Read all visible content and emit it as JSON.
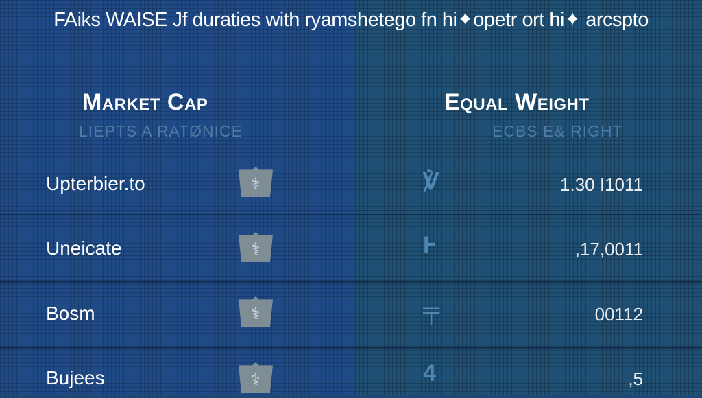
{
  "title": "FAiks WAISE Jf duraties with ryamshetego fn hi✦opetr ort hi✦ arcspto",
  "columns": [
    {
      "heading": "Market Cap",
      "subheading": "LIEPTS A RATØNICE"
    },
    {
      "heading": "Equal Weight",
      "subheading": "ECBS E& RIGHT"
    }
  ],
  "rows": [
    {
      "label": "Upterbier.to",
      "value": "1.30 I1011",
      "left_icon": "shield-emblem-icon",
      "right_icon": "bat-glyph-icon"
    },
    {
      "label": "Uneicate",
      "value": ",17,0011",
      "left_icon": "shield-emblem-icon",
      "right_icon": "glyph-icon"
    },
    {
      "label": "Bosm",
      "value": "00112",
      "left_icon": "shield-emblem-icon",
      "right_icon": "glyph-icon"
    },
    {
      "label": "Bujees",
      "value": ",5",
      "left_icon": "shield-emblem-icon",
      "right_icon": "glyph-icon"
    }
  ],
  "colors": {
    "left_panel": "#1f4a85",
    "right_panel": "#1f4f73",
    "badge": "#7f8e95",
    "glyph": "#4e88b3"
  }
}
